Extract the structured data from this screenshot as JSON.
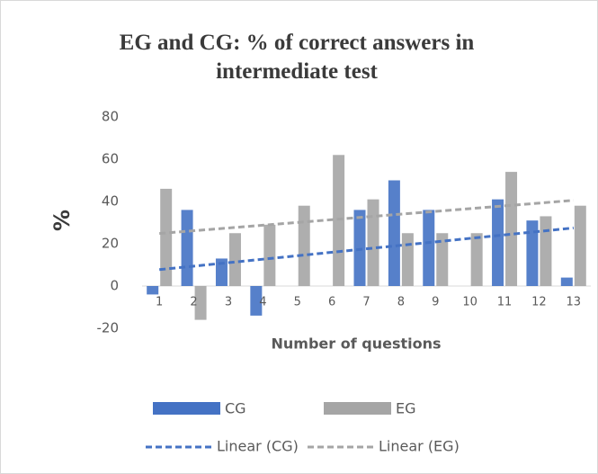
{
  "chart_data": {
    "type": "bar",
    "title": "EG and CG: % of correct answers in intermediate test",
    "x_label": "Number of questions",
    "y_label": "%",
    "categories": [
      "1",
      "2",
      "3",
      "4",
      "5",
      "6",
      "7",
      "8",
      "9",
      "10",
      "11",
      "12",
      "13"
    ],
    "series": [
      {
        "name": "CG",
        "color": "#4472c4",
        "values": [
          -4,
          36,
          13,
          -14,
          0,
          0,
          36,
          50,
          36,
          0,
          41,
          31,
          4
        ],
        "trendline": {
          "name": "Linear (CG)",
          "color": "#4472c4"
        }
      },
      {
        "name": "EG",
        "color": "#a5a5a5",
        "values": [
          46,
          -16,
          25,
          29,
          38,
          62,
          41,
          25,
          25,
          25,
          54,
          33,
          38
        ],
        "trendline": {
          "name": "Linear (EG)",
          "color": "#a5a5a5"
        }
      }
    ],
    "ylim": [
      -20,
      80
    ],
    "yticks": [
      -20,
      0,
      20,
      40,
      60,
      80
    ]
  }
}
